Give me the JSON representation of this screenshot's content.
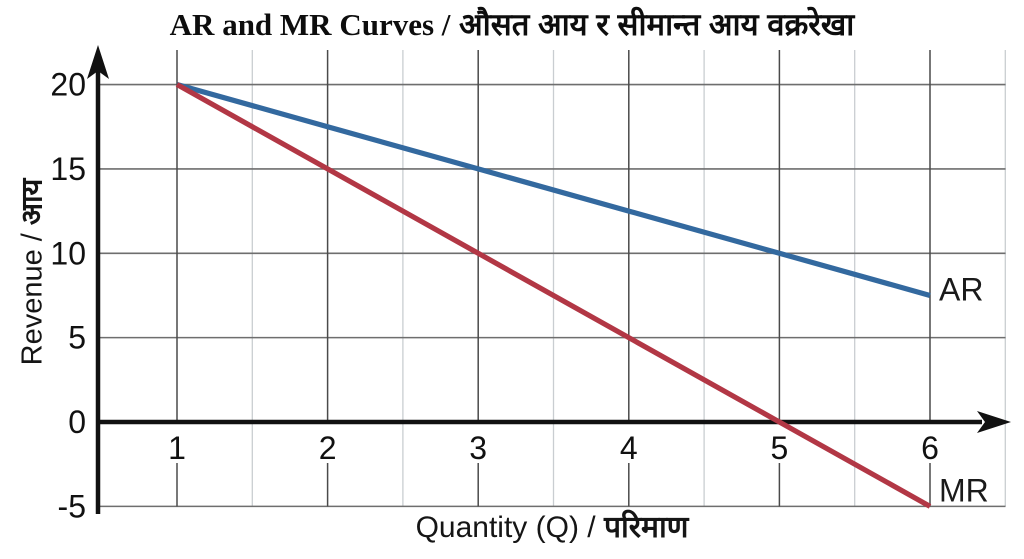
{
  "figure": {
    "background": "#ffffff"
  },
  "chart_data": {
    "type": "line",
    "title": {
      "en": "AR and MR Curves /",
      "np": "औसत आय र सीमान्त आय वक्ररेखा"
    },
    "xlabel": {
      "en": "Quantity (Q) /",
      "np": "परिमाण"
    },
    "ylabel": {
      "en": "Revenue /",
      "np": "आय"
    },
    "x_ticks": [
      1,
      2,
      3,
      4,
      5,
      6
    ],
    "y_ticks": [
      20,
      15,
      10,
      5,
      0,
      -5
    ],
    "xlim": [
      0.48,
      6.55
    ],
    "ylim": [
      -5,
      22
    ],
    "grid": {
      "visible": true,
      "minor_x_step": 0.5,
      "major_x_step": 1,
      "y_step": 5
    },
    "legend_position": "line-end-labels",
    "x": [
      1,
      2,
      3,
      4,
      5,
      6
    ],
    "series": [
      {
        "name": "AR",
        "color": "#33699f",
        "values": [
          20,
          17.5,
          15,
          12.5,
          10,
          7.5
        ]
      },
      {
        "name": "MR",
        "color": "#b23745",
        "values": [
          20,
          15,
          10,
          5,
          0,
          -5
        ]
      }
    ],
    "style": {
      "axis_color": "#111111",
      "grid_major_v_color": "#4a4a4a",
      "grid_minor_v_color": "#c9cdd1",
      "grid_h_color": "#6e6e6e",
      "tick_text_color": "#111111",
      "series_label_color": "#1a1a1a"
    }
  }
}
